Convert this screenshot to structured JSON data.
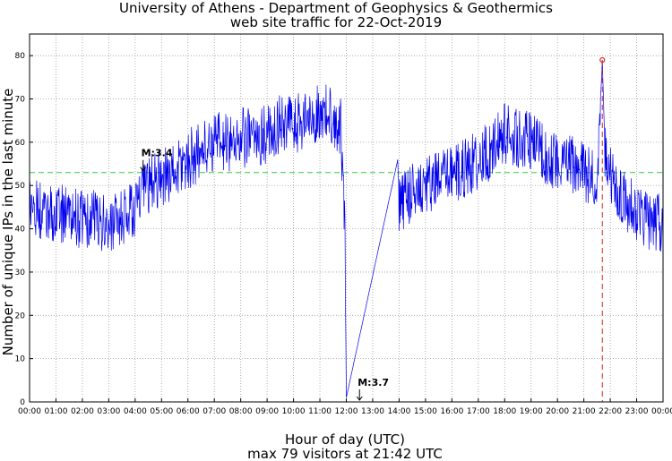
{
  "chart_data": {
    "type": "line",
    "title": [
      "University of Athens - Department of Geophysics & Geothermics",
      "web site traffic for 22-Oct-2019"
    ],
    "xlabel": "Hour of day (UTC)",
    "subtitle": "max 79 visitors at 21:42 UTC",
    "ylabel": "Number of unique IPs in the last minute",
    "xlim": [
      0,
      24
    ],
    "ylim": [
      0,
      85
    ],
    "grid": true,
    "x_tick_labels": [
      "00:00",
      "01:00",
      "02:00",
      "03:00",
      "04:00",
      "05:00",
      "06:00",
      "07:00",
      "08:00",
      "09:00",
      "10:00",
      "11:00",
      "12:00",
      "13:00",
      "14:00",
      "15:00",
      "16:00",
      "17:00",
      "18:00",
      "19:00",
      "20:00",
      "21:00",
      "22:00",
      "23:00",
      "00:00"
    ],
    "y_ticks": [
      0,
      10,
      20,
      30,
      40,
      50,
      60,
      70,
      80
    ],
    "reference_line": {
      "y": 53,
      "color": "#33cc33",
      "style": "dashed"
    },
    "max_marker": {
      "x": 21.7,
      "y": 79,
      "color": "#dd2222"
    },
    "series": [
      {
        "name": "visitors",
        "color": "#0000ee",
        "points": [
          [
            0.0,
            45
          ],
          [
            0.5,
            44
          ],
          [
            1.0,
            44
          ],
          [
            1.5,
            43
          ],
          [
            2.0,
            42
          ],
          [
            2.5,
            42
          ],
          [
            3.0,
            41
          ],
          [
            3.5,
            42
          ],
          [
            4.0,
            45
          ],
          [
            4.5,
            50
          ],
          [
            5.0,
            52
          ],
          [
            5.5,
            53
          ],
          [
            6.0,
            56
          ],
          [
            6.5,
            58
          ],
          [
            7.0,
            60
          ],
          [
            7.5,
            60
          ],
          [
            8.0,
            61
          ],
          [
            8.5,
            61
          ],
          [
            9.0,
            62
          ],
          [
            9.5,
            64
          ],
          [
            10.0,
            64
          ],
          [
            10.5,
            65
          ],
          [
            11.0,
            67
          ],
          [
            11.5,
            66
          ],
          [
            11.8,
            63
          ],
          [
            11.95,
            40
          ],
          [
            12.0,
            1
          ],
          [
            13.95,
            56
          ],
          [
            14.0,
            45
          ],
          [
            14.5,
            49
          ],
          [
            15.0,
            50
          ],
          [
            15.5,
            51
          ],
          [
            16.0,
            53
          ],
          [
            16.5,
            54
          ],
          [
            17.0,
            56
          ],
          [
            17.5,
            58
          ],
          [
            18.0,
            62
          ],
          [
            18.5,
            61
          ],
          [
            19.0,
            60
          ],
          [
            19.5,
            57
          ],
          [
            20.0,
            56
          ],
          [
            20.5,
            55
          ],
          [
            21.0,
            53
          ],
          [
            21.5,
            52
          ],
          [
            21.7,
            79
          ],
          [
            21.8,
            58
          ],
          [
            22.0,
            52
          ],
          [
            22.5,
            47
          ],
          [
            23.0,
            44
          ],
          [
            23.5,
            42
          ],
          [
            24.0,
            41
          ]
        ]
      }
    ],
    "annotations": [
      {
        "label": "M:3.4",
        "x": 4.3,
        "y": 53
      },
      {
        "label": "M:3.7",
        "x": 12.5,
        "y": 0
      }
    ]
  }
}
